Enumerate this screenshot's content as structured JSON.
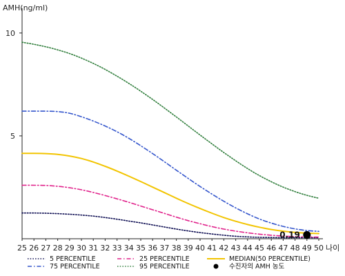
{
  "chart_data": {
    "type": "line",
    "ylabel": "AMH(ng/ml)",
    "xlabel": "나이",
    "x": [
      25,
      26,
      27,
      28,
      29,
      30,
      31,
      32,
      33,
      34,
      35,
      36,
      37,
      38,
      39,
      40,
      41,
      42,
      43,
      44,
      45,
      46,
      47,
      48,
      49,
      50
    ],
    "xlim": [
      25,
      50
    ],
    "ylim": [
      0,
      11
    ],
    "yticks": [
      5,
      10
    ],
    "grid": false,
    "legend_position": "bottom",
    "series": [
      {
        "name": "5 PERCENTILE",
        "color": "#0a0a50",
        "dash": "dotted",
        "values": [
          1.25,
          1.25,
          1.24,
          1.22,
          1.19,
          1.15,
          1.1,
          1.03,
          0.95,
          0.86,
          0.77,
          0.67,
          0.57,
          0.47,
          0.38,
          0.3,
          0.23,
          0.17,
          0.12,
          0.09,
          0.07,
          0.06,
          0.05,
          0.05,
          0.05,
          0.05
        ]
      },
      {
        "name": "75 PERCENTILE",
        "color": "#3355cc",
        "dash": "dashdot",
        "values": [
          6.2,
          6.2,
          6.2,
          6.18,
          6.1,
          5.93,
          5.72,
          5.48,
          5.2,
          4.88,
          4.52,
          4.14,
          3.74,
          3.33,
          2.93,
          2.54,
          2.17,
          1.82,
          1.5,
          1.21,
          0.96,
          0.76,
          0.6,
          0.48,
          0.4,
          0.36
        ]
      },
      {
        "name": "25 PERCENTILE",
        "color": "#e0208a",
        "dash": "dashdot",
        "values": [
          2.6,
          2.6,
          2.59,
          2.55,
          2.48,
          2.38,
          2.25,
          2.1,
          1.94,
          1.77,
          1.59,
          1.41,
          1.23,
          1.05,
          0.88,
          0.73,
          0.59,
          0.47,
          0.37,
          0.29,
          0.22,
          0.17,
          0.13,
          0.1,
          0.09,
          0.08
        ]
      },
      {
        "name": "95 PERCENTILE",
        "color": "#2e7d3a",
        "dash": "dotted",
        "values": [
          9.55,
          9.45,
          9.33,
          9.18,
          9.0,
          8.78,
          8.52,
          8.23,
          7.9,
          7.55,
          7.17,
          6.77,
          6.35,
          5.92,
          5.48,
          5.04,
          4.61,
          4.19,
          3.79,
          3.41,
          3.07,
          2.77,
          2.51,
          2.29,
          2.11,
          1.97
        ]
      },
      {
        "name": "MEDIAN(50 PERCENTILE)",
        "color": "#f2c400",
        "dash": "solid",
        "values": [
          4.15,
          4.15,
          4.14,
          4.1,
          4.02,
          3.9,
          3.73,
          3.52,
          3.29,
          3.04,
          2.78,
          2.51,
          2.24,
          1.97,
          1.71,
          1.47,
          1.24,
          1.03,
          0.85,
          0.69,
          0.56,
          0.45,
          0.37,
          0.31,
          0.27,
          0.25
        ]
      }
    ],
    "points": [
      {
        "name": "수진자의 AMH 농도",
        "x": 49,
        "y": 0.19,
        "label": "0.19",
        "color": "#000000"
      }
    ]
  }
}
